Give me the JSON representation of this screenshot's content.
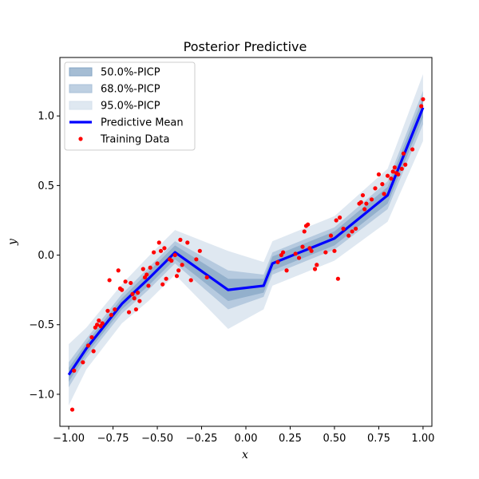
{
  "chart_data": {
    "type": "line",
    "title": "Posterior Predictive",
    "xlabel": "x",
    "ylabel": "y",
    "xlim": [
      -1.05,
      1.05
    ],
    "ylim": [
      -1.23,
      1.42
    ],
    "xticks": [
      -1.0,
      -0.75,
      -0.5,
      -0.25,
      0.0,
      0.25,
      0.5,
      0.75,
      1.0
    ],
    "xtick_labels": [
      "−1.00",
      "−0.75",
      "−0.50",
      "−0.25",
      "0.00",
      "0.25",
      "0.50",
      "0.75",
      "1.00"
    ],
    "yticks": [
      -1.0,
      -0.5,
      0.0,
      0.5,
      1.0
    ],
    "ytick_labels": [
      "−1.0",
      "−0.5",
      "0.0",
      "0.5",
      "1.0"
    ],
    "grid": false,
    "legend_position": "top-left",
    "colors": {
      "band_50": "#87a7c6",
      "band_68": "#a8c0d8",
      "band_95": "#d4e0ec",
      "mean": "#0000ff",
      "training": "#ff0000"
    },
    "series": [
      {
        "name": "50.0%-PICP",
        "kind": "band",
        "halfwidth": [
          0.05,
          0.04,
          0.04,
          0.05,
          0.05,
          0.08,
          0.05,
          0.05,
          0.05,
          0.06,
          0.07
        ]
      },
      {
        "name": "68.0%-PICP",
        "kind": "band",
        "halfwidth": [
          0.09,
          0.07,
          0.07,
          0.08,
          0.08,
          0.14,
          0.08,
          0.08,
          0.08,
          0.1,
          0.12
        ]
      },
      {
        "name": "95.0%-PICP",
        "kind": "band",
        "halfwidth": [
          0.22,
          0.15,
          0.14,
          0.16,
          0.16,
          0.28,
          0.17,
          0.16,
          0.16,
          0.19,
          0.24
        ]
      },
      {
        "name": "Predictive Mean",
        "kind": "line",
        "x": [
          -1.0,
          -0.9,
          -0.7,
          -0.55,
          -0.4,
          -0.1,
          0.1,
          0.15,
          0.5,
          0.8,
          1.0
        ],
        "y": [
          -0.86,
          -0.67,
          -0.35,
          -0.17,
          0.02,
          -0.25,
          -0.22,
          -0.06,
          0.12,
          0.43,
          1.06
        ]
      },
      {
        "name": "Training Data",
        "kind": "scatter",
        "x": [
          -0.98,
          -0.97,
          -0.92,
          -0.89,
          -0.87,
          -0.86,
          -0.85,
          -0.84,
          -0.83,
          -0.82,
          -0.81,
          -0.78,
          -0.77,
          -0.76,
          -0.74,
          -0.72,
          -0.71,
          -0.7,
          -0.68,
          -0.66,
          -0.65,
          -0.64,
          -0.63,
          -0.62,
          -0.61,
          -0.6,
          -0.58,
          -0.57,
          -0.56,
          -0.55,
          -0.54,
          -0.52,
          -0.5,
          -0.49,
          -0.48,
          -0.47,
          -0.46,
          -0.45,
          -0.43,
          -0.42,
          -0.4,
          -0.39,
          -0.38,
          -0.37,
          -0.36,
          -0.33,
          -0.31,
          -0.28,
          -0.26,
          -0.22,
          0.18,
          0.2,
          0.21,
          0.23,
          0.28,
          0.3,
          0.32,
          0.33,
          0.34,
          0.35,
          0.36,
          0.37,
          0.39,
          0.4,
          0.45,
          0.48,
          0.5,
          0.51,
          0.52,
          0.53,
          0.55,
          0.58,
          0.6,
          0.62,
          0.64,
          0.65,
          0.66,
          0.67,
          0.68,
          0.71,
          0.73,
          0.75,
          0.77,
          0.78,
          0.8,
          0.82,
          0.83,
          0.84,
          0.85,
          0.86,
          0.88,
          0.89,
          0.9,
          0.94,
          0.99,
          1.0
        ],
        "y": [
          -1.11,
          -0.83,
          -0.77,
          -0.65,
          -0.59,
          -0.69,
          -0.52,
          -0.5,
          -0.47,
          -0.51,
          -0.49,
          -0.4,
          -0.18,
          -0.43,
          -0.39,
          -0.11,
          -0.24,
          -0.25,
          -0.19,
          -0.41,
          -0.2,
          -0.28,
          -0.31,
          -0.39,
          -0.27,
          -0.33,
          -0.1,
          -0.16,
          -0.14,
          -0.22,
          -0.09,
          0.02,
          -0.06,
          0.09,
          0.03,
          -0.21,
          0.05,
          -0.17,
          -0.03,
          -0.04,
          0.0,
          -0.15,
          -0.11,
          0.11,
          -0.07,
          0.09,
          -0.18,
          -0.03,
          0.03,
          -0.16,
          -0.05,
          0.0,
          0.02,
          -0.11,
          0.01,
          -0.02,
          0.06,
          0.17,
          0.21,
          0.22,
          0.05,
          0.03,
          -0.1,
          -0.07,
          0.02,
          0.14,
          0.03,
          0.25,
          -0.17,
          0.27,
          0.19,
          0.14,
          0.17,
          0.19,
          0.37,
          0.38,
          0.43,
          0.33,
          0.37,
          0.4,
          0.48,
          0.58,
          0.51,
          0.44,
          0.57,
          0.55,
          0.6,
          0.63,
          0.59,
          0.58,
          0.62,
          0.73,
          0.65,
          0.76,
          1.07,
          1.12
        ]
      }
    ]
  }
}
